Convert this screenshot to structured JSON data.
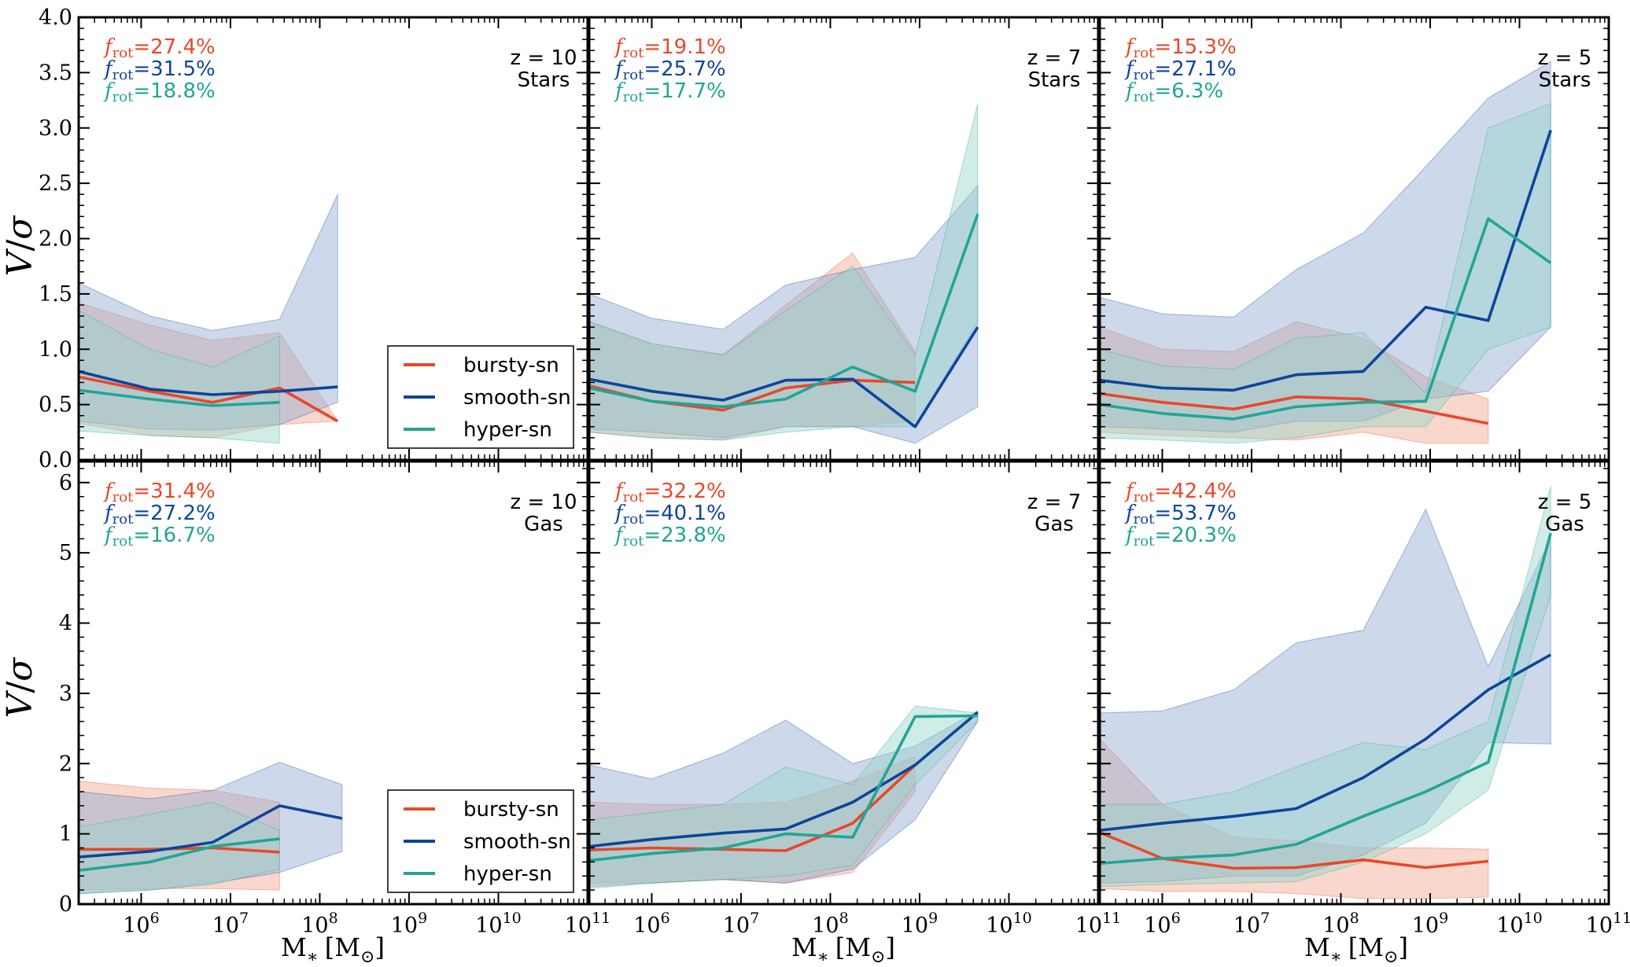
{
  "colors": {
    "bursty": "#e8482a",
    "smooth": "#0e459b",
    "hyper": "#22a594",
    "bursty_fill": "#f2a68e",
    "smooth_fill": "#91a8d2",
    "hyper_fill": "#96d5c9"
  },
  "axes": {
    "xlabel": "M",
    "xlabel_sub": "∗",
    "xlabel_unit_open": "[M",
    "xlabel_unit_sym": "⊙",
    "xlabel_unit_close": "]",
    "ylabel_v": "V",
    "ylabel_slash": "/",
    "ylabel_sigma": "σ",
    "xlim_log10": [
      5.3,
      11
    ],
    "xticks": [
      {
        "base": "10",
        "exp": "6",
        "v": 6
      },
      {
        "base": "10",
        "exp": "7",
        "v": 7
      },
      {
        "base": "10",
        "exp": "8",
        "v": 8
      },
      {
        "base": "10",
        "exp": "9",
        "v": 9
      },
      {
        "base": "10",
        "exp": "10",
        "v": 10
      },
      {
        "base": "10",
        "exp": "11",
        "v": 11
      }
    ],
    "top_ylim": [
      0,
      4.0
    ],
    "top_yticks": [
      "0.0",
      "0.5",
      "1.0",
      "1.5",
      "2.0",
      "2.5",
      "3.0",
      "3.5",
      "4.0"
    ],
    "bottom_ylim": [
      0,
      6.3
    ],
    "bottom_yticks": [
      "0",
      "1",
      "2",
      "3",
      "4",
      "5",
      "6"
    ]
  },
  "legend": {
    "items": [
      {
        "key": "bursty",
        "label": "bursty-sn"
      },
      {
        "key": "smooth",
        "label": "smooth-sn"
      },
      {
        "key": "hyper",
        "label": "hyper-sn"
      }
    ]
  },
  "frot_symbol": "f",
  "frot_sub": "rot",
  "chart_data": [
    {
      "type": "line",
      "row": 0,
      "col": 0,
      "redshift": "z = 10",
      "component": "Stars",
      "frot": {
        "bursty": "=27.4%",
        "smooth": "=31.5%",
        "hyper": "=18.8%"
      },
      "series": [
        {
          "key": "bursty",
          "x": [
            5.3,
            6.1,
            6.8,
            7.55,
            8.2
          ],
          "y": [
            0.75,
            0.62,
            0.52,
            0.65,
            0.35
          ],
          "lo": [
            0.33,
            0.22,
            0.2,
            0.32,
            0.35
          ],
          "hi": [
            1.42,
            1.22,
            1.08,
            1.15,
            0.35
          ]
        },
        {
          "key": "smooth",
          "x": [
            5.3,
            6.1,
            6.8,
            7.55,
            8.2
          ],
          "y": [
            0.8,
            0.64,
            0.59,
            0.62,
            0.66
          ],
          "lo": [
            0.35,
            0.28,
            0.27,
            0.32,
            0.52
          ],
          "hi": [
            1.6,
            1.3,
            1.17,
            1.27,
            2.4
          ]
        },
        {
          "key": "hyper",
          "x": [
            5.3,
            6.1,
            6.8,
            7.55
          ],
          "y": [
            0.63,
            0.55,
            0.49,
            0.52
          ],
          "lo": [
            0.26,
            0.22,
            0.2,
            0.15
          ],
          "hi": [
            1.35,
            1.0,
            0.84,
            1.12
          ]
        }
      ]
    },
    {
      "type": "line",
      "row": 0,
      "col": 1,
      "redshift": "z = 7",
      "component": "Stars",
      "frot": {
        "bursty": "=19.1%",
        "smooth": "=25.7%",
        "hyper": "=17.7%"
      },
      "series": [
        {
          "key": "bursty",
          "x": [
            5.3,
            6.0,
            6.8,
            7.5,
            8.25,
            8.95
          ],
          "y": [
            0.67,
            0.53,
            0.45,
            0.65,
            0.72,
            0.7
          ],
          "lo": [
            0.25,
            0.2,
            0.18,
            0.3,
            0.3,
            0.35
          ],
          "hi": [
            1.25,
            1.05,
            0.95,
            1.4,
            1.87,
            0.98
          ]
        },
        {
          "key": "smooth",
          "x": [
            5.3,
            6.0,
            6.8,
            7.5,
            8.25,
            8.95,
            9.65
          ],
          "y": [
            0.73,
            0.62,
            0.54,
            0.72,
            0.73,
            0.3,
            1.2
          ],
          "lo": [
            0.28,
            0.25,
            0.2,
            0.3,
            0.3,
            0.15,
            0.48
          ],
          "hi": [
            1.5,
            1.28,
            1.18,
            1.58,
            1.72,
            1.83,
            2.48
          ]
        },
        {
          "key": "hyper",
          "x": [
            5.3,
            6.0,
            6.8,
            7.5,
            8.25,
            8.95,
            9.65
          ],
          "y": [
            0.65,
            0.53,
            0.48,
            0.55,
            0.84,
            0.62,
            2.22
          ],
          "lo": [
            0.25,
            0.2,
            0.18,
            0.25,
            0.3,
            0.3,
            1.25
          ],
          "hi": [
            1.25,
            1.05,
            0.95,
            1.35,
            1.75,
            0.95,
            3.22
          ]
        }
      ]
    },
    {
      "type": "line",
      "row": 0,
      "col": 2,
      "redshift": "z = 5",
      "component": "Stars",
      "frot": {
        "bursty": "=15.3%",
        "smooth": "=27.1%",
        "hyper": "=6.3%"
      },
      "series": [
        {
          "key": "bursty",
          "x": [
            5.3,
            6.0,
            6.8,
            7.5,
            8.25,
            8.95,
            9.65
          ],
          "y": [
            0.6,
            0.52,
            0.46,
            0.57,
            0.55,
            0.44,
            0.33
          ],
          "lo": [
            0.25,
            0.22,
            0.2,
            0.18,
            0.25,
            0.15,
            0.15
          ],
          "hi": [
            1.2,
            1.0,
            0.98,
            1.25,
            1.1,
            0.75,
            0.55
          ]
        },
        {
          "key": "smooth",
          "x": [
            5.3,
            6.0,
            6.8,
            7.5,
            8.25,
            8.95,
            9.65,
            10.35
          ],
          "y": [
            0.72,
            0.65,
            0.63,
            0.77,
            0.8,
            1.38,
            1.26,
            2.98
          ],
          "lo": [
            0.3,
            0.28,
            0.25,
            0.35,
            0.35,
            0.55,
            0.62,
            1.2
          ],
          "hi": [
            1.47,
            1.32,
            1.29,
            1.72,
            2.05,
            2.65,
            3.27,
            3.6
          ]
        },
        {
          "key": "hyper",
          "x": [
            5.3,
            6.0,
            6.8,
            7.5,
            8.25,
            8.95,
            9.65,
            10.35
          ],
          "y": [
            0.5,
            0.42,
            0.37,
            0.48,
            0.52,
            0.53,
            2.18,
            1.78
          ],
          "lo": [
            0.2,
            0.18,
            0.15,
            0.2,
            0.3,
            0.3,
            1.0,
            1.2
          ],
          "hi": [
            1.0,
            0.85,
            0.82,
            1.1,
            1.15,
            0.6,
            3.0,
            3.22
          ]
        }
      ]
    },
    {
      "type": "line",
      "row": 1,
      "col": 0,
      "redshift": "z = 10",
      "component": "Gas",
      "frot": {
        "bursty": "=31.4%",
        "smooth": "=27.2%",
        "hyper": "=16.7%"
      },
      "series": [
        {
          "key": "bursty",
          "x": [
            5.3,
            6.1,
            6.8,
            7.55
          ],
          "y": [
            0.78,
            0.78,
            0.8,
            0.74
          ],
          "lo": [
            0.2,
            0.22,
            0.22,
            0.2
          ],
          "hi": [
            1.75,
            1.65,
            1.62,
            1.45
          ]
        },
        {
          "key": "smooth",
          "x": [
            5.3,
            6.1,
            6.8,
            7.55,
            8.25
          ],
          "y": [
            0.67,
            0.75,
            0.88,
            1.4,
            1.22
          ],
          "lo": [
            0.15,
            0.2,
            0.3,
            0.45,
            0.75
          ],
          "hi": [
            1.6,
            1.5,
            1.62,
            2.02,
            1.7
          ]
        },
        {
          "key": "hyper",
          "x": [
            5.3,
            6.1,
            6.8,
            7.55
          ],
          "y": [
            0.48,
            0.6,
            0.82,
            0.93
          ],
          "lo": [
            0.15,
            0.2,
            0.28,
            0.5
          ],
          "hi": [
            1.1,
            1.28,
            1.45,
            1.05
          ]
        }
      ]
    },
    {
      "type": "line",
      "row": 1,
      "col": 1,
      "redshift": "z = 7",
      "component": "Gas",
      "frot": {
        "bursty": "=32.2%",
        "smooth": "=40.1%",
        "hyper": "=23.8%"
      },
      "series": [
        {
          "key": "bursty",
          "x": [
            5.3,
            6.0,
            6.8,
            7.5,
            8.25,
            8.95
          ],
          "y": [
            0.77,
            0.8,
            0.78,
            0.76,
            1.15,
            1.98
          ],
          "lo": [
            0.3,
            0.3,
            0.35,
            0.3,
            0.45,
            1.6
          ],
          "hi": [
            1.45,
            1.42,
            1.42,
            1.45,
            1.75,
            2.1
          ]
        },
        {
          "key": "smooth",
          "x": [
            5.3,
            6.0,
            6.8,
            7.5,
            8.25,
            8.95,
            9.65
          ],
          "y": [
            0.82,
            0.92,
            1.01,
            1.07,
            1.45,
            1.98,
            2.73
          ],
          "lo": [
            0.25,
            0.3,
            0.35,
            0.3,
            0.5,
            1.2,
            2.6
          ],
          "hi": [
            1.98,
            1.78,
            2.15,
            2.62,
            2.0,
            2.25,
            2.75
          ]
        },
        {
          "key": "hyper",
          "x": [
            5.3,
            6.0,
            6.8,
            7.5,
            8.25,
            8.95,
            9.65
          ],
          "y": [
            0.62,
            0.72,
            0.8,
            1.0,
            0.95,
            2.67,
            2.68
          ],
          "lo": [
            0.22,
            0.3,
            0.35,
            0.4,
            0.55,
            1.7,
            2.6
          ],
          "hi": [
            1.2,
            1.3,
            1.42,
            1.95,
            1.7,
            2.82,
            2.72
          ]
        }
      ]
    },
    {
      "type": "line",
      "row": 1,
      "col": 2,
      "redshift": "z = 5",
      "component": "Gas",
      "frot": {
        "bursty": "=42.4%",
        "smooth": "=53.7%",
        "hyper": "=20.3%"
      },
      "series": [
        {
          "key": "bursty",
          "x": [
            5.3,
            6.0,
            6.8,
            7.5,
            8.25,
            8.95,
            9.65
          ],
          "y": [
            1.02,
            0.65,
            0.51,
            0.52,
            0.63,
            0.52,
            0.61
          ],
          "lo": [
            0.22,
            0.18,
            0.18,
            0.15,
            0.08,
            0.08,
            0.1
          ],
          "hi": [
            2.35,
            1.42,
            0.95,
            0.9,
            0.8,
            0.8,
            0.78
          ]
        },
        {
          "key": "smooth",
          "x": [
            5.3,
            6.0,
            6.8,
            7.5,
            8.25,
            8.95,
            9.65,
            10.35
          ],
          "y": [
            1.05,
            1.15,
            1.25,
            1.36,
            1.8,
            2.35,
            3.05,
            3.55
          ],
          "lo": [
            0.3,
            0.32,
            0.4,
            0.4,
            0.7,
            1.15,
            2.3,
            2.28
          ],
          "hi": [
            2.72,
            2.75,
            3.05,
            3.72,
            3.9,
            5.62,
            3.38,
            5.2
          ]
        },
        {
          "key": "hyper",
          "x": [
            5.3,
            6.0,
            6.8,
            7.5,
            8.25,
            8.95,
            9.65,
            10.35
          ],
          "y": [
            0.58,
            0.65,
            0.7,
            0.85,
            1.25,
            1.6,
            2.02,
            5.28
          ],
          "lo": [
            0.25,
            0.28,
            0.3,
            0.32,
            0.6,
            1.0,
            1.62,
            4.4
          ],
          "hi": [
            1.42,
            1.42,
            1.6,
            1.95,
            2.3,
            2.2,
            2.6,
            5.95
          ]
        }
      ]
    }
  ]
}
